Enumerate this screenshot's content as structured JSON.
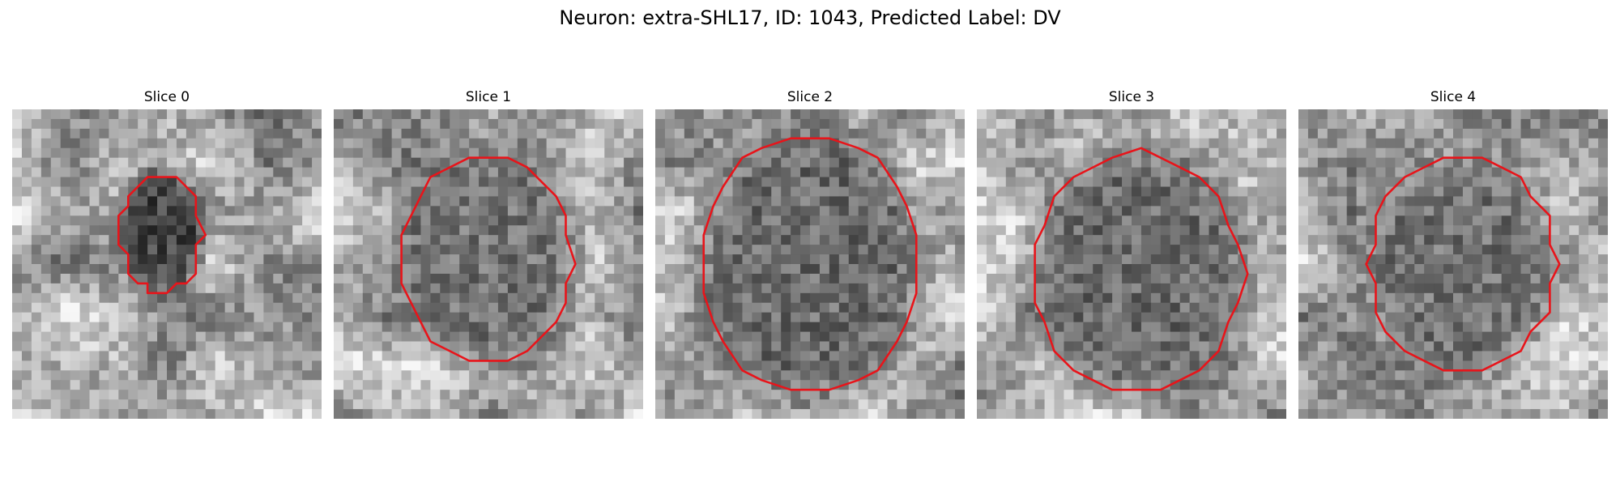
{
  "figure": {
    "title": "Neuron: extra-SHL17, ID: 1043, Predicted Label: DV",
    "outline_color": "#e8141a"
  },
  "slices": [
    {
      "title": "Slice 0"
    },
    {
      "title": "Slice 1"
    },
    {
      "title": "Slice 2"
    },
    {
      "title": "Slice 3"
    },
    {
      "title": "Slice 4"
    }
  ]
}
